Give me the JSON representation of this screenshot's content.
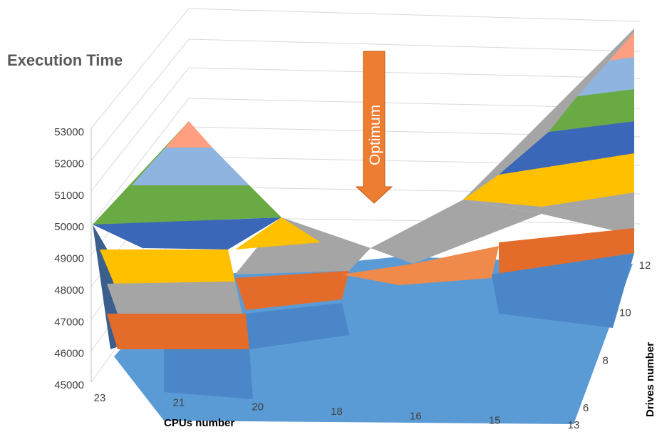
{
  "chart_data": {
    "type": "surface",
    "title": "Execution Time",
    "xlabel": "CPUs number",
    "zlabel": "Drives number",
    "x_ticks": [
      "23",
      "21",
      "20",
      "18",
      "16",
      "15",
      "13"
    ],
    "z_ticks": [
      "6",
      "8",
      "10",
      "12"
    ],
    "y_ticks": [
      "45000",
      "46000",
      "47000",
      "48000",
      "49000",
      "50000",
      "51000",
      "52000",
      "53000"
    ],
    "ylim": [
      45000,
      53000
    ],
    "band_colors": [
      "#4a86c8",
      "#e46c2b",
      "#a5a5a5",
      "#ffc000",
      "#3b67b8",
      "#6aaa45",
      "#8fb4e0",
      "#ff9e80"
    ],
    "annotation": "Optimum",
    "annotation_color": "#ed7d31",
    "ridge_values": [
      50000,
      53000,
      49000,
      48500,
      49000,
      49800,
      53000
    ]
  }
}
